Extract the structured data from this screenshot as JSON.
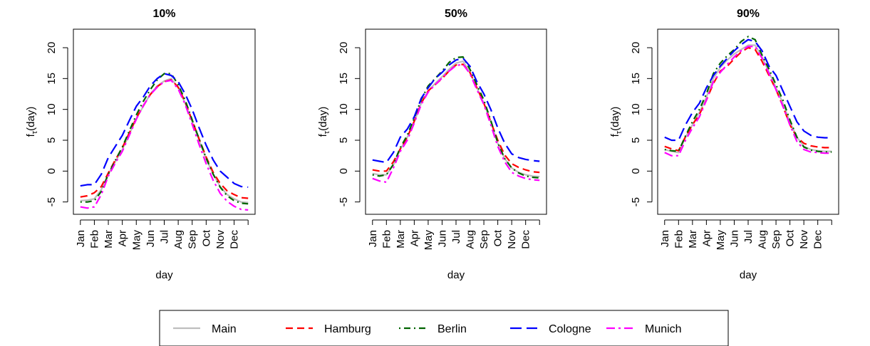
{
  "chart_data": [
    {
      "type": "line",
      "title": "10%",
      "xlabel": "day",
      "ylabel": "fτ(day)",
      "ylabel_main": "f",
      "ylabel_sub": "τ",
      "ylabel_tail": "(day)",
      "ylim": [
        -7,
        23
      ],
      "yticks": [
        -5,
        0,
        5,
        10,
        15,
        20
      ],
      "xlim": [
        0.5,
        13.5
      ],
      "x_ticks": [
        1,
        2,
        3,
        4,
        5,
        6,
        7,
        8,
        9,
        10,
        11,
        12,
        13
      ],
      "x_tick_labels": [
        "Jan",
        "Feb",
        "Mar",
        "Apr",
        "May",
        "Jun",
        "Jul",
        "Aug",
        "Sep",
        "Oct",
        "Nov",
        "Dec",
        ""
      ],
      "x": [
        1,
        1.5,
        2,
        2.5,
        3,
        3.5,
        4,
        4.5,
        5,
        5.5,
        6,
        6.5,
        7,
        7.5,
        8,
        8.5,
        9,
        9.5,
        10,
        10.5,
        11,
        11.5,
        12,
        12.5,
        13
      ],
      "series": [
        {
          "name": "Main",
          "values": [
            -4.8,
            -4.7,
            -4.5,
            -3.0,
            -0.5,
            1.5,
            3.5,
            6.0,
            8.5,
            10.5,
            12.5,
            13.8,
            14.6,
            15.0,
            13.5,
            11.0,
            8.0,
            5.0,
            2.0,
            -0.5,
            -2.5,
            -3.8,
            -4.5,
            -5.0,
            -5.1
          ]
        },
        {
          "name": "Hamburg",
          "values": [
            -4.2,
            -4.0,
            -3.5,
            -2.5,
            -0.3,
            1.8,
            3.8,
            6.2,
            8.6,
            10.6,
            12.4,
            13.7,
            14.5,
            14.8,
            13.6,
            11.2,
            8.2,
            5.2,
            2.3,
            -0.2,
            -2.0,
            -3.2,
            -3.8,
            -4.3,
            -4.4
          ]
        },
        {
          "name": "Berlin",
          "values": [
            -5.0,
            -5.0,
            -4.8,
            -3.3,
            -0.5,
            1.7,
            3.9,
            6.5,
            9.1,
            11.3,
            13.2,
            14.8,
            15.8,
            15.8,
            14.0,
            11.5,
            8.3,
            5.2,
            2.1,
            -0.5,
            -2.6,
            -4.0,
            -4.8,
            -5.2,
            -5.3
          ]
        },
        {
          "name": "Cologne",
          "values": [
            -2.4,
            -2.2,
            -2.2,
            -0.5,
            2.2,
            4.0,
            5.8,
            8.2,
            10.5,
            12.0,
            13.8,
            15.0,
            15.8,
            15.5,
            14.5,
            12.5,
            10.0,
            7.0,
            4.2,
            1.8,
            0.0,
            -1.0,
            -2.0,
            -2.5,
            -2.6
          ]
        },
        {
          "name": "Munich",
          "values": [
            -5.8,
            -6.0,
            -5.8,
            -3.8,
            -0.8,
            1.3,
            3.2,
            5.8,
            8.4,
            10.6,
            12.4,
            13.6,
            14.5,
            14.7,
            13.3,
            10.8,
            7.6,
            4.3,
            1.2,
            -1.5,
            -3.6,
            -4.9,
            -5.7,
            -6.2,
            -6.3
          ]
        }
      ]
    },
    {
      "type": "line",
      "title": "50%",
      "xlabel": "day",
      "ylabel": "fτ(day)",
      "ylabel_main": "f",
      "ylabel_sub": "τ",
      "ylabel_tail": "(day)",
      "ylim": [
        -7,
        23
      ],
      "yticks": [
        -5,
        0,
        5,
        10,
        15,
        20
      ],
      "xlim": [
        0.5,
        13.5
      ],
      "x_ticks": [
        1,
        2,
        3,
        4,
        5,
        6,
        7,
        8,
        9,
        10,
        11,
        12,
        13
      ],
      "x_tick_labels": [
        "Jan",
        "Feb",
        "Mar",
        "Apr",
        "May",
        "Jun",
        "Jul",
        "Aug",
        "Sep",
        "Oct",
        "Nov",
        "Dec",
        ""
      ],
      "x": [
        1,
        1.5,
        2,
        2.5,
        3,
        3.5,
        4,
        4.5,
        5,
        5.5,
        6,
        6.5,
        7,
        7.5,
        8,
        8.5,
        9,
        9.5,
        10,
        10.5,
        11,
        11.5,
        12,
        12.5,
        13
      ],
      "series": [
        {
          "name": "Main",
          "values": [
            -0.4,
            -0.6,
            -0.6,
            1.0,
            3.5,
            5.5,
            8.0,
            11.0,
            13.0,
            14.2,
            15.3,
            16.5,
            17.5,
            17.8,
            16.0,
            13.5,
            11.0,
            8.0,
            4.5,
            2.0,
            0.5,
            -0.2,
            -0.6,
            -0.8,
            -0.9
          ]
        },
        {
          "name": "Hamburg",
          "values": [
            0.2,
            0.0,
            0.0,
            1.5,
            3.6,
            5.5,
            8.1,
            11.0,
            13.0,
            14.0,
            15.0,
            16.2,
            17.2,
            17.3,
            16.0,
            13.5,
            11.0,
            8.0,
            5.0,
            2.6,
            1.2,
            0.6,
            0.2,
            -0.1,
            -0.2
          ]
        },
        {
          "name": "Berlin",
          "values": [
            -0.6,
            -0.8,
            -0.6,
            1.1,
            3.8,
            5.8,
            8.6,
            11.6,
            13.8,
            15.0,
            16.2,
            17.6,
            18.4,
            18.5,
            16.5,
            14.0,
            11.5,
            8.2,
            4.6,
            2.0,
            0.5,
            -0.3,
            -0.8,
            -1.0,
            -1.1
          ]
        },
        {
          "name": "Cologne",
          "values": [
            1.8,
            1.6,
            1.4,
            3.0,
            5.5,
            6.8,
            8.8,
            11.8,
            13.5,
            15.0,
            16.0,
            17.2,
            18.0,
            18.3,
            17.0,
            14.5,
            12.5,
            10.0,
            7.0,
            4.5,
            2.8,
            2.2,
            1.9,
            1.7,
            1.6
          ]
        },
        {
          "name": "Munich",
          "values": [
            -1.2,
            -1.6,
            -1.8,
            0.5,
            3.2,
            5.0,
            7.8,
            10.8,
            12.8,
            14.0,
            15.1,
            16.2,
            17.1,
            17.3,
            15.8,
            13.2,
            10.8,
            7.5,
            4.0,
            1.5,
            -0.2,
            -0.8,
            -1.2,
            -1.4,
            -1.5
          ]
        }
      ]
    },
    {
      "type": "line",
      "title": "90%",
      "xlabel": "day",
      "ylabel": "fτ(day)",
      "ylabel_main": "f",
      "ylabel_sub": "τ",
      "ylabel_tail": "(day)",
      "ylim": [
        -7,
        23
      ],
      "yticks": [
        -5,
        0,
        5,
        10,
        15,
        20
      ],
      "xlim": [
        0.5,
        13.5
      ],
      "x_ticks": [
        1,
        2,
        3,
        4,
        5,
        6,
        7,
        8,
        9,
        10,
        11,
        12,
        13
      ],
      "x_tick_labels": [
        "Jan",
        "Feb",
        "Mar",
        "Apr",
        "May",
        "Jun",
        "Jul",
        "Aug",
        "Sep",
        "Oct",
        "Nov",
        "Dec",
        ""
      ],
      "x": [
        1,
        1.5,
        2,
        2.5,
        3,
        3.5,
        4,
        4.5,
        5,
        5.5,
        6,
        6.5,
        7,
        7.5,
        8,
        8.5,
        9,
        9.5,
        10,
        10.5,
        11,
        11.5,
        12,
        12.5,
        13
      ],
      "series": [
        {
          "name": "Main",
          "values": [
            3.5,
            3.2,
            3.0,
            5.5,
            7.5,
            9.5,
            12.0,
            15.0,
            16.8,
            18.0,
            19.0,
            19.7,
            20.4,
            20.4,
            18.5,
            16.0,
            13.5,
            11.0,
            8.0,
            5.5,
            4.0,
            3.5,
            3.3,
            3.2,
            3.2
          ]
        },
        {
          "name": "Hamburg",
          "values": [
            4.0,
            3.6,
            3.3,
            5.6,
            7.5,
            9.2,
            11.5,
            14.2,
            16.2,
            17.0,
            18.2,
            19.3,
            20.0,
            19.7,
            17.8,
            15.5,
            13.2,
            10.5,
            7.5,
            5.5,
            4.5,
            4.1,
            3.9,
            3.8,
            3.8
          ]
        },
        {
          "name": "Berlin",
          "values": [
            3.5,
            3.3,
            3.2,
            5.7,
            8.0,
            10.0,
            12.5,
            15.8,
            17.5,
            18.7,
            19.7,
            21.0,
            21.8,
            21.3,
            18.8,
            16.5,
            14.0,
            11.5,
            8.3,
            5.5,
            3.9,
            3.4,
            3.2,
            3.1,
            3.1
          ]
        },
        {
          "name": "Cologne",
          "values": [
            5.5,
            5.0,
            5.0,
            7.5,
            9.5,
            11.0,
            13.5,
            15.5,
            17.0,
            18.3,
            19.5,
            20.5,
            21.3,
            21.0,
            19.5,
            17.0,
            15.5,
            13.0,
            10.5,
            8.0,
            6.5,
            5.8,
            5.5,
            5.4,
            5.4
          ]
        },
        {
          "name": "Munich",
          "values": [
            3.0,
            2.5,
            2.5,
            5.0,
            7.0,
            8.8,
            11.5,
            14.5,
            16.0,
            17.3,
            18.5,
            19.5,
            20.2,
            20.2,
            18.3,
            15.8,
            13.2,
            10.5,
            7.5,
            4.8,
            3.5,
            3.1,
            3.0,
            2.9,
            2.9
          ]
        }
      ]
    }
  ],
  "legend": [
    {
      "name": "Main",
      "color": "#bebebe",
      "dash": "solid"
    },
    {
      "name": "Hamburg",
      "color": "#ff0000",
      "dash": "dashed"
    },
    {
      "name": "Berlin",
      "color": "#006400",
      "dash": "dotdash"
    },
    {
      "name": "Cologne",
      "color": "#0000ff",
      "dash": "longdash"
    },
    {
      "name": "Munich",
      "color": "#ff00ff",
      "dash": "twodash"
    }
  ]
}
